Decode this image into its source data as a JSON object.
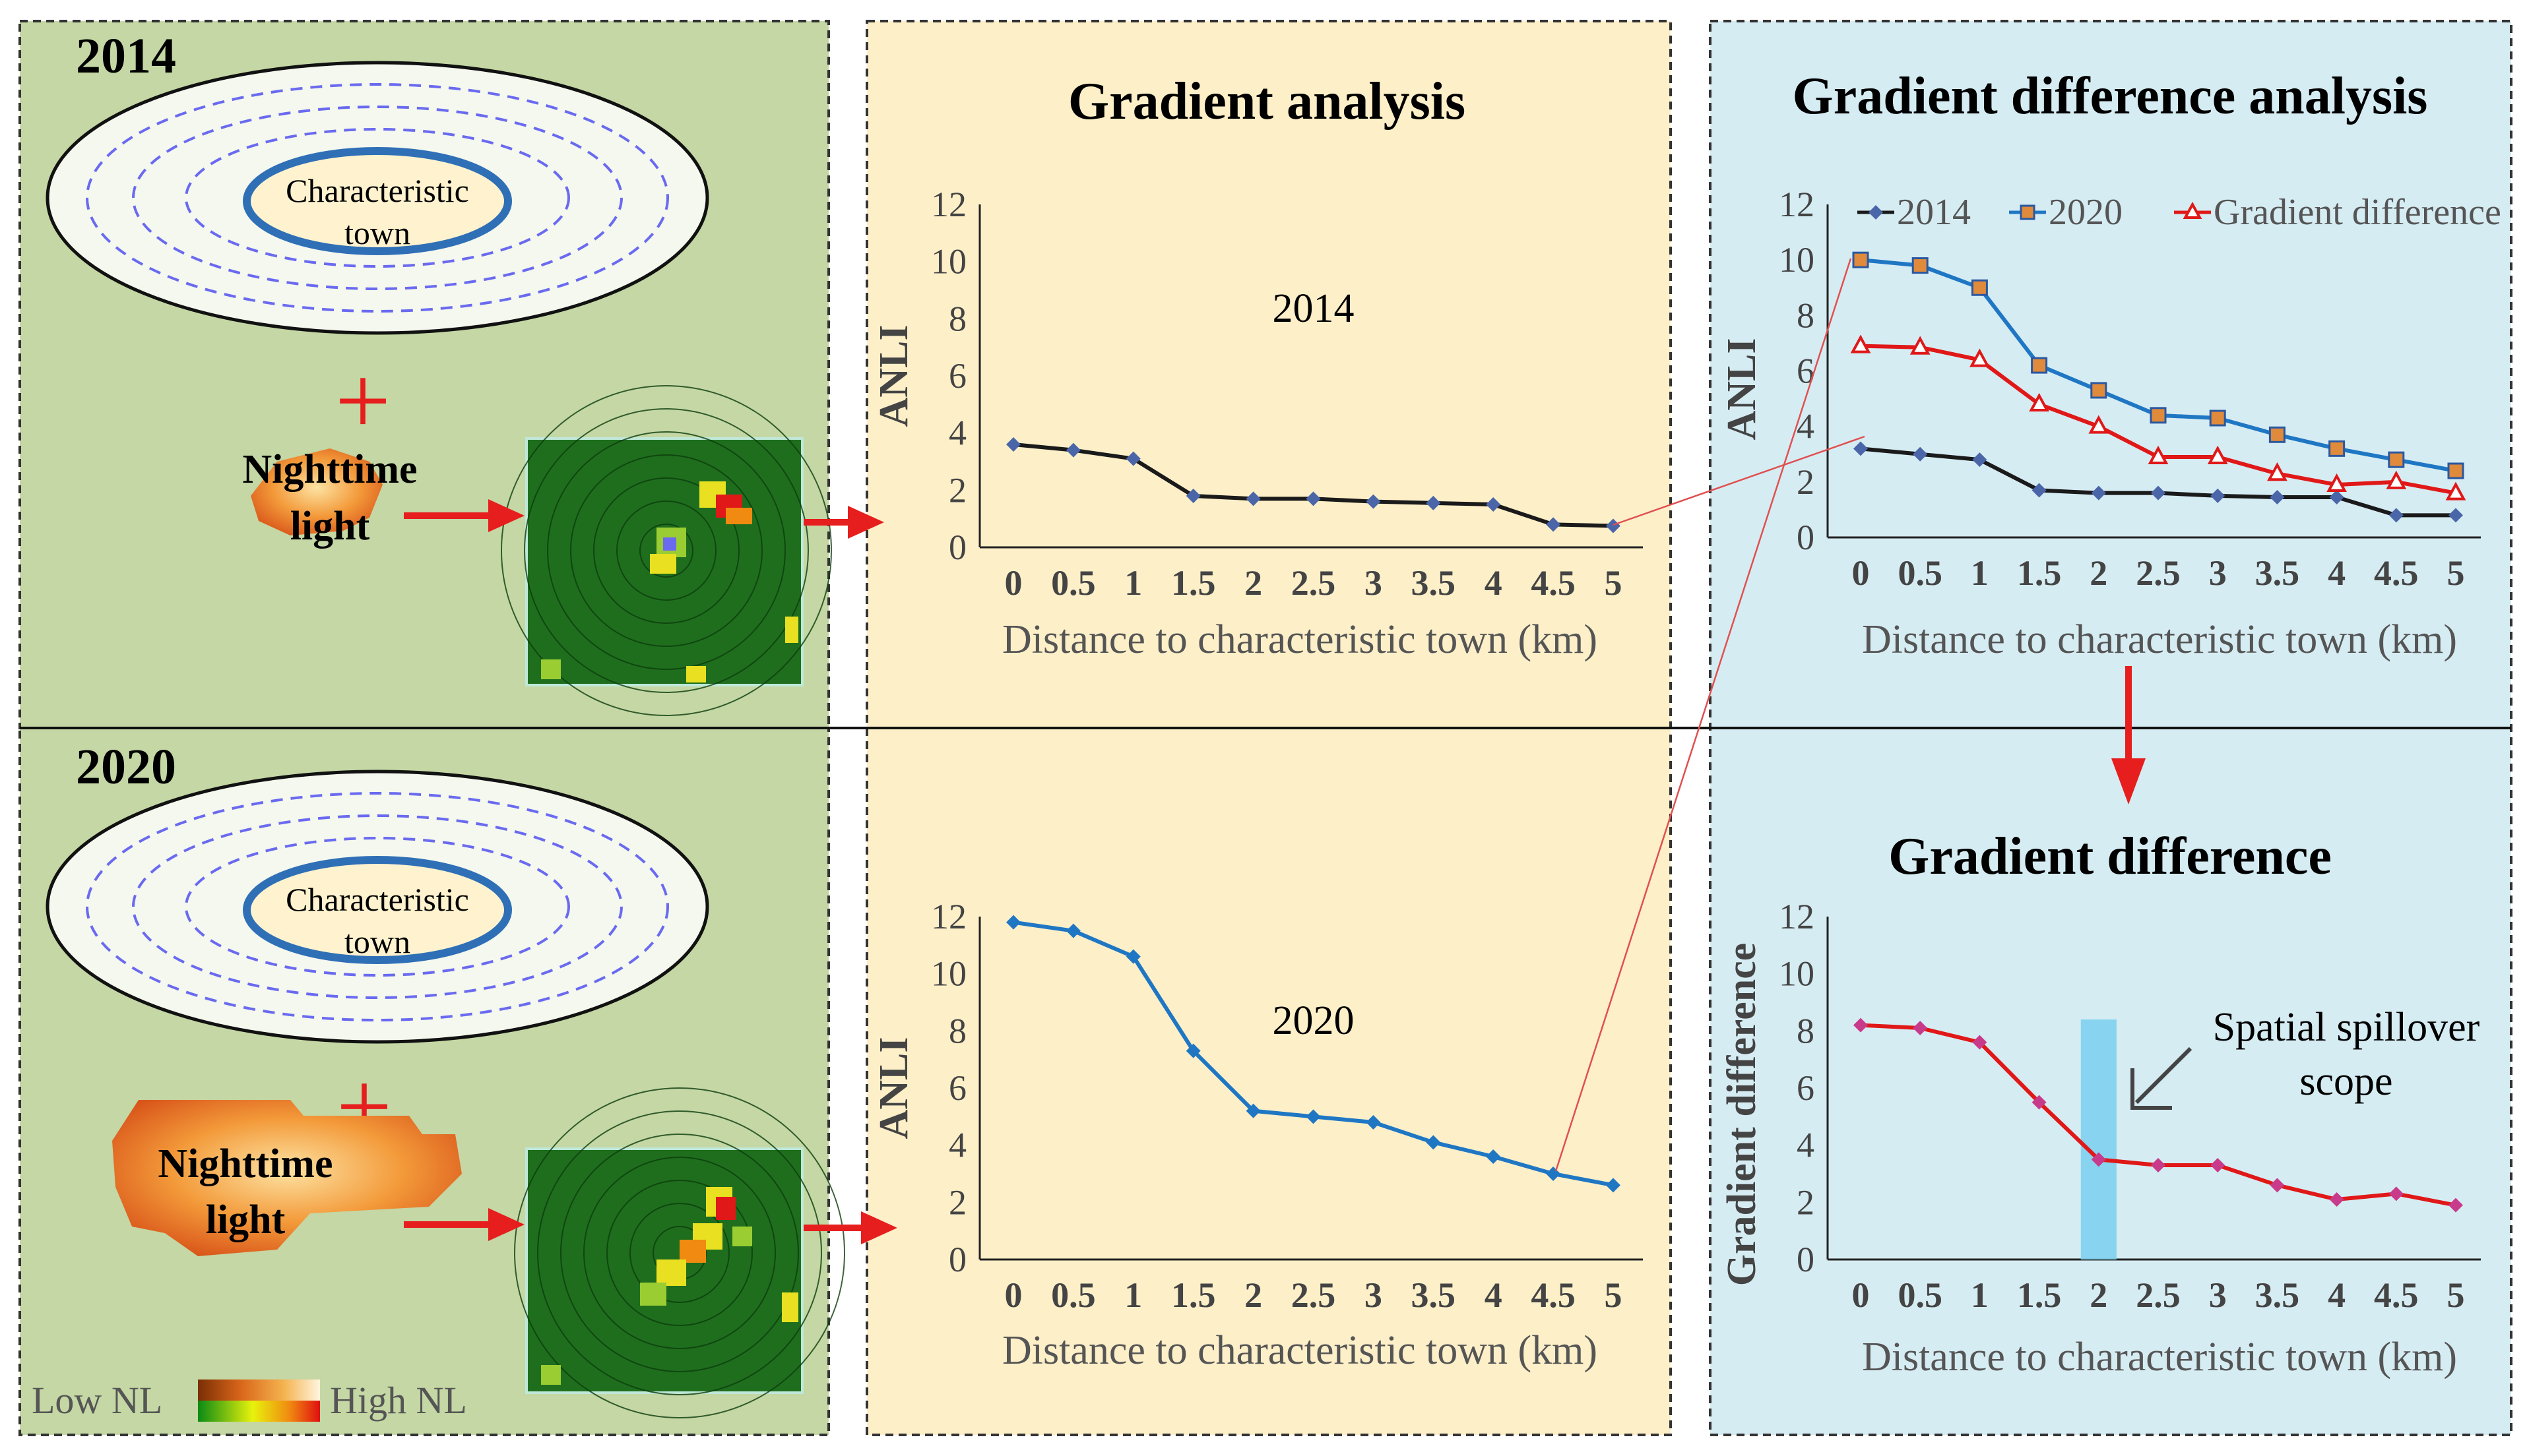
{
  "colors": {
    "panel_green": "#c4d7a4",
    "panel_yellow": "#fdefc8",
    "panel_blue": "#d6ecf3",
    "series_2014": "#1a1a1a",
    "series_2020": "#1f77c4",
    "series_diff": "#e01818",
    "marker_2014": "#4a66a8",
    "marker_2020": "#e08a3c",
    "spillover_band": "#7fd2f0",
    "arrow_red": "#e61e1e"
  },
  "years": {
    "top": "2014",
    "bottom": "2020"
  },
  "schematic": {
    "town_label_line1": "Characteristic",
    "town_label_line2": "town",
    "plus_symbol": "+",
    "light_label_line1": "Nighttime",
    "light_label_line2": "light"
  },
  "legend_nl": {
    "low": "Low NL",
    "high": "High NL"
  },
  "titles": {
    "gradient_analysis": "Gradient analysis",
    "gradient_difference_analysis": "Gradient difference analysis",
    "gradient_difference": "Gradient difference"
  },
  "annotation": {
    "spillover_line1": "Spatial spillover",
    "spillover_line2": "scope"
  },
  "chart_data": [
    {
      "id": "chart_2014",
      "type": "line",
      "inset_label": "2014",
      "x": [
        0,
        0.5,
        1,
        1.5,
        2,
        2.5,
        3,
        3.5,
        4,
        4.5,
        5
      ],
      "x_tick_labels": [
        "0",
        "0.5",
        "1",
        "1.5",
        "2",
        "2.5",
        "3",
        "3.5",
        "4",
        "4.5",
        "5"
      ],
      "values": [
        3.6,
        3.4,
        3.1,
        1.8,
        1.7,
        1.7,
        1.6,
        1.55,
        1.5,
        0.8,
        0.75
      ],
      "ylim": [
        0,
        12
      ],
      "y_ticks": [
        "0",
        "2",
        "4",
        "6",
        "8",
        "10",
        "12"
      ],
      "xlabel": "Distance to characteristic town (km)",
      "ylabel": "ANLI"
    },
    {
      "id": "chart_2020",
      "type": "line",
      "inset_label": "2020",
      "x": [
        0,
        0.5,
        1,
        1.5,
        2,
        2.5,
        3,
        3.5,
        4,
        4.5,
        5
      ],
      "x_tick_labels": [
        "0",
        "0.5",
        "1",
        "1.5",
        "2",
        "2.5",
        "3",
        "3.5",
        "4",
        "4.5",
        "5"
      ],
      "values": [
        11.8,
        11.5,
        10.6,
        7.3,
        5.2,
        5.0,
        4.8,
        4.1,
        3.6,
        3.0,
        2.6
      ],
      "ylim": [
        0,
        12
      ],
      "y_ticks": [
        "0",
        "2",
        "4",
        "6",
        "8",
        "10",
        "12"
      ],
      "xlabel": "Distance to characteristic town (km)",
      "ylabel": "ANLI"
    },
    {
      "id": "chart_combined",
      "type": "line",
      "x": [
        0,
        0.5,
        1,
        1.5,
        2,
        2.5,
        3,
        3.5,
        4,
        4.5,
        5
      ],
      "x_tick_labels": [
        "0",
        "0.5",
        "1",
        "1.5",
        "2",
        "2.5",
        "3",
        "3.5",
        "4",
        "4.5",
        "5"
      ],
      "series": [
        {
          "name": "2014",
          "values": [
            3.2,
            3.0,
            2.8,
            1.7,
            1.6,
            1.6,
            1.5,
            1.45,
            1.45,
            0.8,
            0.8
          ]
        },
        {
          "name": "2020",
          "values": [
            10.0,
            9.8,
            9.0,
            6.2,
            5.3,
            4.4,
            4.3,
            3.7,
            3.2,
            2.8,
            2.4
          ]
        },
        {
          "name": "Gradient difference",
          "values": [
            6.9,
            6.85,
            6.4,
            4.8,
            4.0,
            2.9,
            2.9,
            2.3,
            1.9,
            2.0,
            1.6
          ]
        }
      ],
      "ylim": [
        0,
        12
      ],
      "y_ticks": [
        "0",
        "2",
        "4",
        "6",
        "8",
        "10",
        "12"
      ],
      "xlabel": "Distance to characteristic town (km)",
      "ylabel": "ANLI",
      "legend_position": "top"
    },
    {
      "id": "chart_difference",
      "type": "line",
      "x": [
        0,
        0.5,
        1,
        1.5,
        2,
        2.5,
        3,
        3.5,
        4,
        4.5,
        5
      ],
      "x_tick_labels": [
        "0",
        "0.5",
        "1",
        "1.5",
        "2",
        "2.5",
        "3",
        "3.5",
        "4",
        "4.5",
        "5"
      ],
      "values": [
        8.2,
        8.1,
        7.6,
        5.5,
        3.5,
        3.3,
        3.3,
        2.6,
        2.1,
        2.3,
        1.9
      ],
      "ylim": [
        0,
        12
      ],
      "y_ticks": [
        "0",
        "2",
        "4",
        "6",
        "8",
        "10",
        "12"
      ],
      "xlabel": "Distance to characteristic town (km)",
      "ylabel": "Gradient difference",
      "highlight_x_range": [
        1.85,
        2.15
      ]
    }
  ]
}
